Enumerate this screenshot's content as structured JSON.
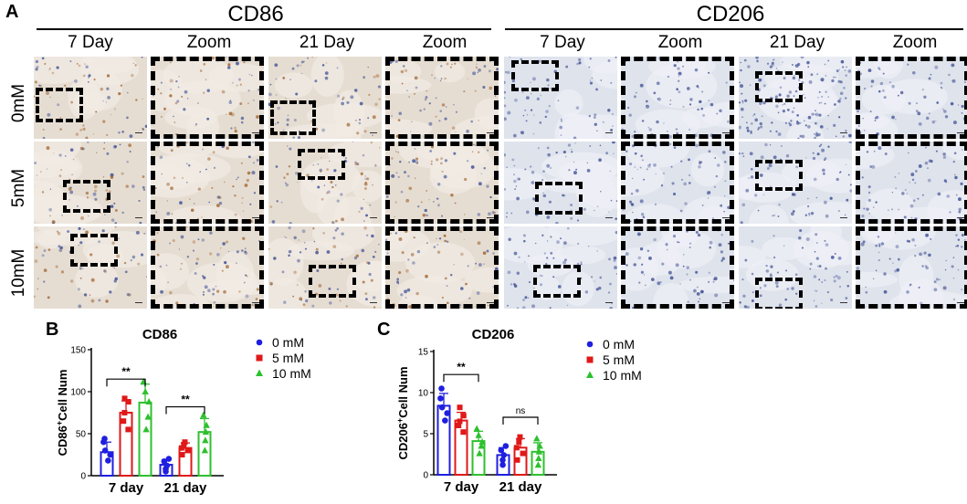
{
  "panel_a": {
    "letter": "A",
    "groups": [
      {
        "title": "CD86",
        "columns": [
          "7 Day",
          "Zoom",
          "21 Day",
          "Zoom"
        ]
      },
      {
        "title": "CD206",
        "columns": [
          "7 Day",
          "Zoom",
          "21 Day",
          "Zoom"
        ]
      }
    ],
    "rows": [
      "0mM",
      "5mM",
      "10mM"
    ],
    "stain_colors": {
      "cd86_bg": "#e6ddd2",
      "cd86_dot": "#a0622c",
      "cd206_bg": "#dfe3ec",
      "cd206_dot": "#3d4f93"
    }
  },
  "panel_b": {
    "letter": "B",
    "legend": [
      "0 mM",
      "5 mM",
      "10 mM"
    ],
    "significance": [
      "**",
      "**"
    ]
  },
  "panel_c": {
    "letter": "C",
    "legend": [
      "0 mM",
      "5 mM",
      "10 mM"
    ],
    "significance": [
      "**",
      "ns"
    ]
  },
  "colors": {
    "0 mM": "#1f1fe0",
    "5 mM": "#e01818",
    "10 mM": "#2ec02e"
  },
  "chart_data": [
    {
      "type": "bar",
      "title": "CD86",
      "ylabel": "CD86+Cell Num",
      "ylabel_main": "CD86",
      "ylabel_sup": "+",
      "ylabel_rest": "Cell Num",
      "categories": [
        "7 day",
        "21 day"
      ],
      "yticks": [
        0,
        50,
        100,
        150
      ],
      "ylim": [
        0,
        150
      ],
      "series": [
        {
          "name": "0 mM",
          "values": [
            28,
            13
          ],
          "errors": [
            12,
            6
          ],
          "points": [
            [
              18,
              25,
              30,
              40,
              44
            ],
            [
              5,
              8,
              12,
              17,
              20
            ]
          ]
        },
        {
          "name": "5 mM",
          "values": [
            75,
            33
          ],
          "errors": [
            14,
            6
          ],
          "points": [
            [
              55,
              65,
              75,
              88,
              92
            ],
            [
              25,
              30,
              33,
              37,
              40
            ]
          ]
        },
        {
          "name": "10 mM",
          "values": [
            87,
            52
          ],
          "errors": [
            22,
            16
          ],
          "points": [
            [
              55,
              70,
              88,
              100,
              112
            ],
            [
              30,
              42,
              52,
              60,
              72
            ]
          ]
        }
      ],
      "brackets": [
        {
          "category": 0,
          "from": 0,
          "to": 2,
          "y": 115,
          "label": "**"
        },
        {
          "category": 1,
          "from": 0,
          "to": 2,
          "y": 82,
          "label": "**"
        }
      ]
    },
    {
      "type": "bar",
      "title": "CD206",
      "ylabel": "CD206+Cell Num",
      "ylabel_main": "CD206",
      "ylabel_sup": "+",
      "ylabel_rest": "Cell Num",
      "categories": [
        "7 day",
        "21 day"
      ],
      "yticks": [
        0,
        5,
        10,
        15
      ],
      "ylim": [
        0,
        15
      ],
      "series": [
        {
          "name": "0 mM",
          "values": [
            8.4,
            2.4
          ],
          "errors": [
            1.5,
            0.9
          ],
          "points": [
            [
              6.6,
              7.5,
              8.2,
              9.3,
              10.5
            ],
            [
              1.2,
              1.8,
              2.4,
              3.0,
              3.5
            ]
          ]
        },
        {
          "name": "5 mM",
          "values": [
            6.6,
            3.3
          ],
          "errors": [
            1.0,
            1.1
          ],
          "points": [
            [
              5.2,
              6.0,
              6.5,
              7.2,
              8.2
            ],
            [
              1.8,
              2.6,
              3.3,
              4.0,
              4.6
            ]
          ]
        },
        {
          "name": "10 mM",
          "values": [
            4.1,
            2.8
          ],
          "errors": [
            1.2,
            1.1
          ],
          "points": [
            [
              2.6,
              3.5,
              4.0,
              4.8,
              5.6
            ],
            [
              1.2,
              2.0,
              2.8,
              3.5,
              4.4
            ]
          ]
        }
      ],
      "brackets": [
        {
          "category": 0,
          "from": 0,
          "to": 2,
          "y": 12.2,
          "label": "**"
        },
        {
          "category": 1,
          "from": 0,
          "to": 2,
          "y": 7.0,
          "label": "ns"
        }
      ]
    }
  ]
}
